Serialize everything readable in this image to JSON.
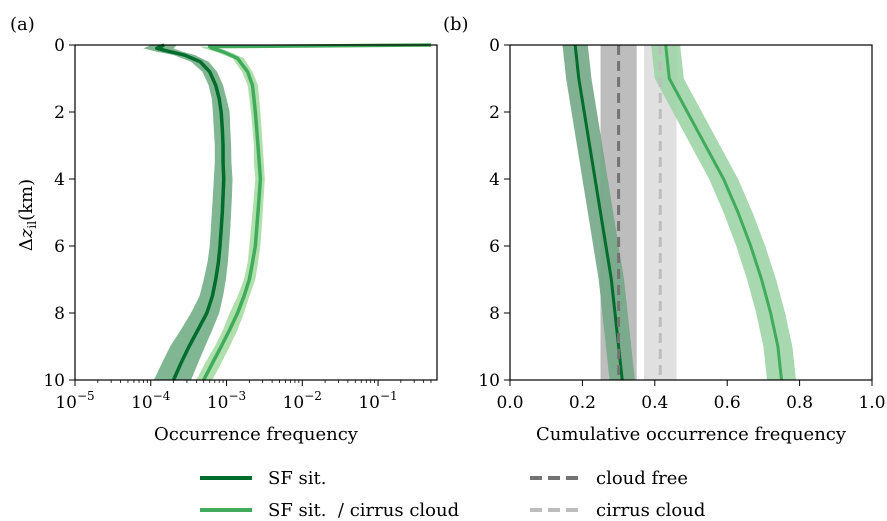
{
  "figure": {
    "panel_a_label": "(a)",
    "panel_b_label": "(b)"
  },
  "legend": {
    "items": [
      {
        "label": "SF sit.",
        "color": "#006d2c",
        "style": "solid"
      },
      {
        "label": "SF sit.  / cirrus cloud",
        "color": "#41ab5d",
        "style": "solid"
      },
      {
        "label": "cloud free",
        "color": "#737373",
        "style": "dashed"
      },
      {
        "label": "cirrus cloud",
        "color": "#bdbdbd",
        "style": "dashed"
      }
    ]
  },
  "chart_data": [
    {
      "panel": "(a)",
      "type": "line",
      "xlabel": "Occurrence frequency",
      "ylabel": "Δz_il (km)",
      "xscale": "log",
      "xlim": [
        1e-05,
        0.6
      ],
      "ylim": [
        10,
        0
      ],
      "xticks": [
        1e-05,
        0.0001,
        0.001,
        0.01,
        0.1
      ],
      "xtick_labels": [
        {
          "base": "10",
          "exp": "−5"
        },
        {
          "base": "10",
          "exp": "−4"
        },
        {
          "base": "10",
          "exp": "−3"
        },
        {
          "base": "10",
          "exp": "−2"
        },
        {
          "base": "10",
          "exp": "−1"
        }
      ],
      "yticks": [
        0,
        2,
        4,
        6,
        8,
        10
      ],
      "ytick_labels": [
        "0",
        "2",
        "4",
        "6",
        "8",
        "10"
      ],
      "grid": false,
      "series": [
        {
          "name": "SF sit.",
          "color": "#006d2c",
          "band_color": "#6aa97f",
          "y": [
            0.0,
            0.1,
            0.2,
            0.3,
            0.5,
            0.8,
            1.2,
            1.6,
            2.0,
            2.5,
            3.0,
            3.5,
            4.0,
            4.5,
            5.0,
            5.5,
            6.0,
            6.5,
            7.0,
            7.5,
            8.0,
            8.5,
            9.0,
            9.5,
            10.0
          ],
          "values": [
            0.00015,
            0.00012,
            0.00018,
            0.00028,
            0.00045,
            0.0006,
            0.00072,
            0.0008,
            0.00085,
            0.00088,
            0.0009,
            0.0009,
            0.00092,
            0.0009,
            0.00088,
            0.00085,
            0.00082,
            0.00078,
            0.00072,
            0.00065,
            0.00055,
            0.00042,
            0.00032,
            0.00025,
            0.0002
          ],
          "band_low": [
            0.0001,
            8e-05,
            0.00012,
            0.0002,
            0.00034,
            0.00048,
            0.00058,
            0.00064,
            0.00066,
            0.00068,
            0.0007,
            0.0007,
            0.00068,
            0.00066,
            0.00064,
            0.00062,
            0.0006,
            0.00056,
            0.0005,
            0.00044,
            0.00034,
            0.00025,
            0.00018,
            0.00014,
            0.00011
          ],
          "band_high": [
            0.00022,
            0.0002,
            0.00026,
            0.00038,
            0.00058,
            0.00075,
            0.0009,
            0.001,
            0.0011,
            0.00112,
            0.00115,
            0.00116,
            0.0012,
            0.00118,
            0.00115,
            0.00112,
            0.00108,
            0.00104,
            0.00098,
            0.0009,
            0.0008,
            0.00065,
            0.00052,
            0.00042,
            0.00034
          ]
        },
        {
          "name": "SF sit.  / cirrus cloud",
          "color": "#41ab5d",
          "band_color": "#a1d99b",
          "y": [
            0.0,
            0.05,
            0.1,
            0.2,
            0.4,
            0.8,
            1.2,
            1.6,
            2.0,
            2.5,
            3.0,
            3.5,
            4.0,
            4.5,
            5.0,
            5.5,
            6.0,
            6.5,
            7.0,
            7.5,
            8.0,
            8.5,
            9.0,
            9.5,
            10.0
          ],
          "values": [
            0.5,
            0.0006,
            0.00065,
            0.0009,
            0.0014,
            0.0019,
            0.0022,
            0.0023,
            0.0024,
            0.0025,
            0.0026,
            0.0027,
            0.0028,
            0.0027,
            0.0026,
            0.0025,
            0.0024,
            0.0022,
            0.002,
            0.0017,
            0.0014,
            0.0011,
            0.00085,
            0.00065,
            0.0005
          ],
          "band_low": [
            0.5,
            0.00045,
            0.0005,
            0.00072,
            0.0012,
            0.0016,
            0.0019,
            0.002,
            0.0021,
            0.0022,
            0.0023,
            0.0023,
            0.0024,
            0.0023,
            0.0022,
            0.0021,
            0.002,
            0.0019,
            0.0017,
            0.0014,
            0.0011,
            0.0009,
            0.0007,
            0.00052,
            0.0004
          ],
          "band_high": [
            0.55,
            0.00075,
            0.0008,
            0.0011,
            0.0017,
            0.0022,
            0.0026,
            0.0027,
            0.0028,
            0.0029,
            0.003,
            0.0031,
            0.0032,
            0.0031,
            0.003,
            0.0029,
            0.0028,
            0.0026,
            0.0024,
            0.002,
            0.0017,
            0.0014,
            0.0011,
            0.00085,
            0.00065
          ]
        }
      ]
    },
    {
      "panel": "(b)",
      "type": "line",
      "xlabel": "Cumulative occurrence frequency",
      "ylabel": "",
      "xlim": [
        0,
        1
      ],
      "ylim": [
        10,
        0
      ],
      "xticks": [
        0,
        0.2,
        0.4,
        0.6,
        0.8,
        1.0
      ],
      "xtick_labels": [
        "0.0",
        "0.2",
        "0.4",
        "0.6",
        "0.8",
        "1.0"
      ],
      "yticks": [
        0,
        2,
        4,
        6,
        8,
        10
      ],
      "ytick_labels": [
        "0",
        "2",
        "4",
        "6",
        "8",
        "10"
      ],
      "grid": false,
      "shaded_bands": [
        {
          "name": "cloud free",
          "x_low": 0.25,
          "x_high": 0.35,
          "color": "#bdbdbd"
        },
        {
          "name": "cirrus cloud",
          "x_low": 0.37,
          "x_high": 0.46,
          "color": "#e0e0e0"
        }
      ],
      "series": [
        {
          "name": "SF sit.",
          "color": "#006d2c",
          "band_color": "#74a786",
          "band_width": 0.035,
          "y": [
            0,
            1,
            2,
            3,
            4,
            5,
            6,
            7,
            8,
            9,
            10
          ],
          "values": [
            0.18,
            0.19,
            0.205,
            0.22,
            0.235,
            0.25,
            0.265,
            0.28,
            0.29,
            0.3,
            0.31
          ]
        },
        {
          "name": "SF sit.  / cirrus cloud",
          "color": "#41ab5d",
          "band_color": "#9fd4a6",
          "band_width": 0.04,
          "y": [
            0,
            1,
            2,
            3,
            4,
            5,
            6,
            7,
            8,
            9,
            10
          ],
          "values": [
            0.43,
            0.44,
            0.49,
            0.54,
            0.59,
            0.63,
            0.665,
            0.695,
            0.72,
            0.74,
            0.75
          ]
        },
        {
          "name": "cloud free",
          "color": "#737373",
          "dashed": true,
          "y": [
            0,
            10
          ],
          "values": [
            0.3,
            0.3
          ]
        },
        {
          "name": "cirrus cloud",
          "color": "#bdbdbd",
          "dashed": true,
          "y": [
            0,
            10
          ],
          "values": [
            0.415,
            0.415
          ]
        }
      ]
    }
  ]
}
